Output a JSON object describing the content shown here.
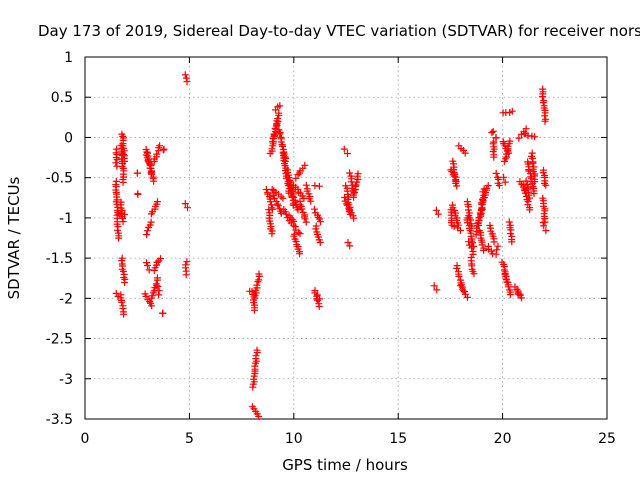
{
  "chart_data": {
    "type": "scatter",
    "title": "Day 173 of 2019, Sidereal Day-to-day VTEC variation (SDTVAR) for receiver nors",
    "xlabel": "GPS time / hours",
    "ylabel": "SDTVAR / TECUs",
    "xlim": [
      0,
      25
    ],
    "ylim": [
      -3.5,
      1
    ],
    "xticks": [
      0,
      5,
      10,
      15,
      20,
      25
    ],
    "yticks": [
      -3.5,
      -3,
      -2.5,
      -2,
      -1.5,
      -1,
      -0.5,
      0,
      0.5,
      1
    ],
    "xtick_labels": [
      "0",
      "5",
      "10",
      "15",
      "20",
      "25"
    ],
    "ytick_labels": [
      "-3.5",
      "-3",
      "-2.5",
      "-2",
      "-1.5",
      "-1",
      "-0.5",
      "0",
      "0.5",
      "1"
    ],
    "grid": true,
    "marker": "plus",
    "color": "#ff0000",
    "segments": [
      [
        1.5,
        -0.35,
        1.52,
        -0.15
      ],
      [
        1.5,
        -0.55,
        1.55,
        -1.0
      ],
      [
        1.55,
        -1.05,
        1.6,
        -1.25
      ],
      [
        1.5,
        -1.93,
        1.6,
        -1.98
      ],
      [
        1.75,
        -0.1,
        1.85,
        -0.55
      ],
      [
        1.8,
        0.05,
        1.9,
        -0.3
      ],
      [
        1.7,
        -0.8,
        1.85,
        -1.05
      ],
      [
        1.75,
        -1.5,
        1.9,
        -1.8
      ],
      [
        1.7,
        -1.95,
        1.85,
        -2.2
      ],
      [
        1.6,
        -0.95,
        1.9,
        -0.95
      ],
      [
        2.5,
        -0.45,
        2.5,
        -0.45
      ],
      [
        2.55,
        -0.7,
        2.55,
        -0.7
      ],
      [
        2.9,
        -0.15,
        3.2,
        -0.45
      ],
      [
        3.0,
        -0.2,
        3.3,
        -0.55
      ],
      [
        3.3,
        -0.3,
        3.6,
        -0.1
      ],
      [
        2.95,
        -1.2,
        3.15,
        -1.05
      ],
      [
        3.2,
        -0.95,
        3.5,
        -0.8
      ],
      [
        3.3,
        -1.65,
        3.6,
        -1.5
      ],
      [
        2.95,
        -1.55,
        3.05,
        -1.65
      ],
      [
        2.9,
        -1.95,
        3.2,
        -2.1
      ],
      [
        3.2,
        -2.0,
        3.5,
        -1.75
      ],
      [
        3.5,
        -1.85,
        3.55,
        -1.95
      ],
      [
        3.7,
        -2.18,
        3.7,
        -2.18
      ],
      [
        3.75,
        -0.15,
        3.75,
        -0.15
      ],
      [
        4.8,
        0.77,
        4.9,
        0.7
      ],
      [
        4.8,
        -0.83,
        4.9,
        -0.87
      ],
      [
        4.85,
        -1.55,
        4.85,
        -1.7
      ],
      [
        8.05,
        -3.35,
        8.35,
        -3.47
      ],
      [
        8.05,
        -3.1,
        8.25,
        -2.65
      ],
      [
        8.1,
        -2.0,
        8.35,
        -1.7
      ],
      [
        8.05,
        -1.95,
        8.15,
        -2.15
      ],
      [
        7.9,
        -1.92,
        8.0,
        -1.92
      ],
      [
        9.1,
        0.35,
        9.35,
        0.4
      ],
      [
        9.0,
        -0.05,
        9.3,
        0.3
      ],
      [
        8.9,
        -0.2,
        9.2,
        0.2
      ],
      [
        9.3,
        0.1,
        9.6,
        -0.3
      ],
      [
        9.5,
        -0.2,
        9.8,
        -0.7
      ],
      [
        9.7,
        -0.4,
        10.0,
        -0.85
      ],
      [
        9.8,
        -0.55,
        10.2,
        -0.9
      ],
      [
        8.95,
        -0.65,
        9.5,
        -0.75
      ],
      [
        8.7,
        -0.65,
        9.0,
        -0.9
      ],
      [
        8.8,
        -0.9,
        8.95,
        -1.2
      ],
      [
        9.0,
        -0.7,
        9.4,
        -0.95
      ],
      [
        9.5,
        -0.9,
        10.0,
        -1.05
      ],
      [
        9.7,
        -1.0,
        10.3,
        -1.2
      ],
      [
        10.0,
        -1.2,
        10.3,
        -1.45
      ],
      [
        10.0,
        -0.6,
        10.5,
        -0.75
      ],
      [
        10.1,
        -0.5,
        10.5,
        -0.35
      ],
      [
        10.3,
        -0.8,
        10.6,
        -1.05
      ],
      [
        10.6,
        -0.6,
        10.8,
        -0.8
      ],
      [
        11.0,
        -0.6,
        11.2,
        -0.6
      ],
      [
        11.0,
        -0.9,
        11.3,
        -1.05
      ],
      [
        11.05,
        -1.1,
        11.25,
        -1.3
      ],
      [
        11.0,
        -1.9,
        11.2,
        -2.1
      ],
      [
        11.15,
        -1.95,
        11.25,
        -2.0
      ],
      [
        12.45,
        -0.15,
        12.6,
        -0.2
      ],
      [
        12.4,
        -0.75,
        12.7,
        -0.95
      ],
      [
        12.5,
        -0.6,
        12.7,
        -0.9
      ],
      [
        12.65,
        -0.9,
        12.9,
        -1.0
      ],
      [
        12.85,
        -0.75,
        13.1,
        -0.45
      ],
      [
        12.7,
        -0.45,
        12.85,
        -0.7
      ],
      [
        12.6,
        -1.3,
        12.65,
        -1.35
      ],
      [
        16.8,
        -0.9,
        16.9,
        -0.95
      ],
      [
        16.75,
        -1.85,
        16.85,
        -1.9
      ],
      [
        17.5,
        -0.4,
        17.8,
        -0.55
      ],
      [
        17.6,
        -0.3,
        17.8,
        -0.6
      ],
      [
        17.6,
        -0.85,
        17.9,
        -1.1
      ],
      [
        17.7,
        -1.1,
        18.0,
        -1.15
      ],
      [
        17.9,
        -0.1,
        18.2,
        -0.2
      ],
      [
        17.5,
        -0.9,
        17.6,
        -1.1
      ],
      [
        17.8,
        -1.6,
        18.1,
        -1.9
      ],
      [
        18.0,
        -1.85,
        18.3,
        -1.98
      ],
      [
        18.3,
        -0.8,
        18.5,
        -1.1
      ],
      [
        18.3,
        -1.0,
        18.6,
        -1.35
      ],
      [
        18.4,
        -1.3,
        18.6,
        -1.45
      ],
      [
        18.5,
        -1.5,
        18.6,
        -1.7
      ],
      [
        18.7,
        -1.2,
        19.0,
        -0.9
      ],
      [
        18.85,
        -1.1,
        19.1,
        -0.65
      ],
      [
        18.95,
        -0.9,
        19.3,
        -0.6
      ],
      [
        18.9,
        -1.15,
        19.1,
        -1.4
      ],
      [
        19.3,
        -1.35,
        19.5,
        -1.45
      ],
      [
        19.55,
        -0.05,
        19.6,
        -0.25
      ],
      [
        19.7,
        0.0,
        19.7,
        0.0
      ],
      [
        19.4,
        -1.1,
        19.6,
        -1.3
      ],
      [
        19.7,
        -0.45,
        19.85,
        -0.6
      ],
      [
        19.7,
        -1.45,
        19.8,
        -1.35
      ],
      [
        19.5,
        0.06,
        19.55,
        0.08
      ],
      [
        20.05,
        0.3,
        20.45,
        0.32
      ],
      [
        20.0,
        -0.05,
        20.3,
        -0.2
      ],
      [
        20.1,
        -0.3,
        20.35,
        -0.05
      ],
      [
        20.05,
        -0.5,
        20.15,
        -0.55
      ],
      [
        20.0,
        -1.55,
        20.2,
        -1.8
      ],
      [
        20.15,
        -1.7,
        20.4,
        -1.95
      ],
      [
        20.35,
        -1.05,
        20.45,
        -1.3
      ],
      [
        20.6,
        -1.85,
        20.9,
        -2.0
      ],
      [
        20.75,
        -1.95,
        20.85,
        -1.95
      ],
      [
        20.8,
        0.0,
        21.1,
        0.1
      ],
      [
        21.0,
        0.05,
        21.5,
        0.0
      ],
      [
        20.8,
        -0.55,
        21.1,
        -0.65
      ],
      [
        21.0,
        -0.6,
        21.3,
        -0.9
      ],
      [
        21.2,
        -0.3,
        21.5,
        -0.7
      ],
      [
        21.4,
        -0.2,
        21.55,
        -0.55
      ],
      [
        21.15,
        -0.55,
        21.3,
        -0.75
      ],
      [
        21.9,
        0.6,
        22.05,
        0.2
      ],
      [
        21.95,
        -0.4,
        22.05,
        -0.6
      ],
      [
        21.95,
        -0.75,
        22.05,
        -1.05
      ],
      [
        21.95,
        -1.05,
        22.05,
        -1.15
      ]
    ]
  }
}
